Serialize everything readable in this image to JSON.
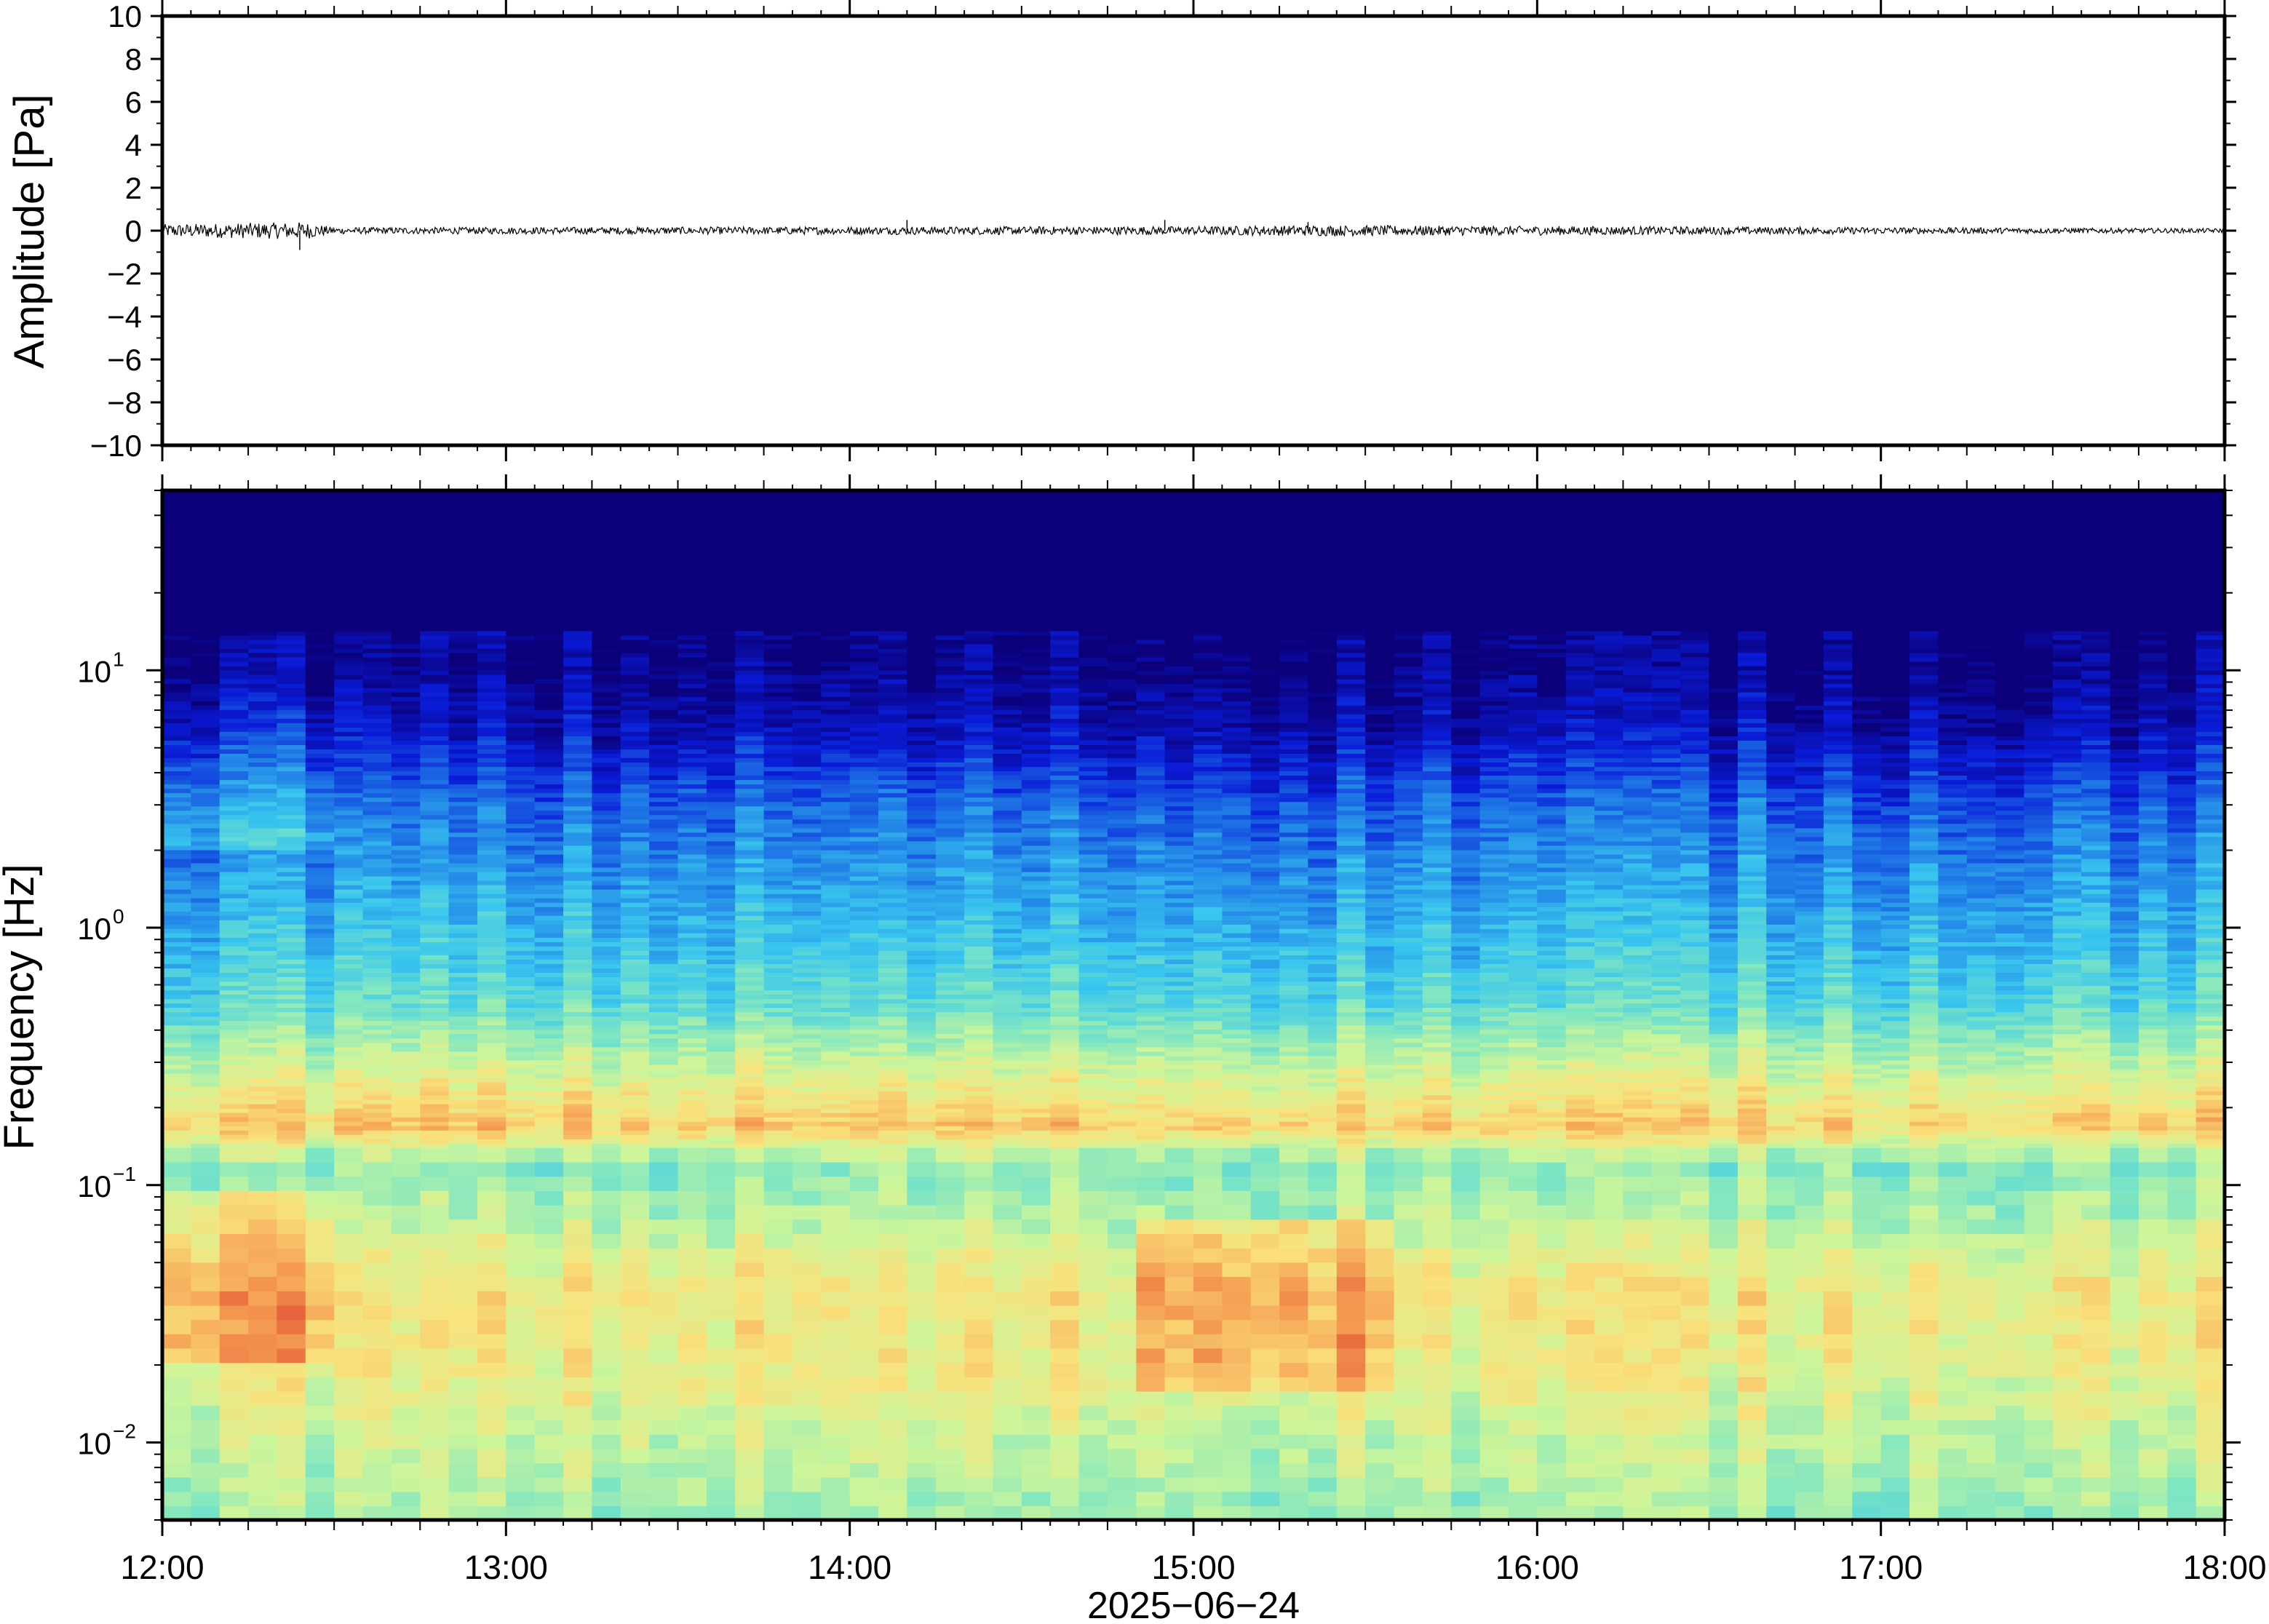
{
  "chart_data": [
    {
      "type": "line",
      "panel": "waveform",
      "ylabel": "Amplitude [Pa]",
      "ylim": [
        -10,
        10
      ],
      "y_ticks": [
        10,
        8,
        6,
        4,
        2,
        0,
        -2,
        -4,
        -6,
        -8,
        -10
      ],
      "y_tick_labels": [
        "10",
        "8",
        "6",
        "4",
        "2",
        "0",
        "−2",
        "−4",
        "−6",
        "−8",
        "−10"
      ],
      "x_range": [
        "12:00",
        "18:00"
      ],
      "line_color": "#000000",
      "baseline": 0,
      "noise_envelope_pa": [
        {
          "t": "12:00",
          "amp": 0.3
        },
        {
          "t": "12:25",
          "amp": 0.4
        },
        {
          "t": "12:30",
          "amp": 0.15
        },
        {
          "t": "15:00",
          "amp": 0.2
        },
        {
          "t": "15:20",
          "amp": 0.25
        },
        {
          "t": "18:00",
          "amp": 0.1
        }
      ],
      "spikes_pa": [
        {
          "t": "12:24",
          "amp": -0.9
        },
        {
          "t": "14:10",
          "amp": 0.5
        },
        {
          "t": "14:55",
          "amp": 0.5
        },
        {
          "t": "15:20",
          "amp": 0.4
        }
      ]
    },
    {
      "type": "heatmap",
      "panel": "spectrogram",
      "ylabel": "Frequency [Hz]",
      "yscale": "log",
      "ylim": [
        0.005,
        50
      ],
      "y_tick_labels": [
        {
          "base": "10",
          "exp": "1",
          "value": 10
        },
        {
          "base": "10",
          "exp": "0",
          "value": 1
        },
        {
          "base": "10",
          "exp": "−1",
          "value": 0.1
        },
        {
          "base": "10",
          "exp": "−2",
          "value": 0.01
        }
      ],
      "colormap": "jet",
      "colormap_stops": [
        "#0b007a",
        "#0a1bd8",
        "#1f7ae6",
        "#39c6ee",
        "#7fe6c2",
        "#cdf59a",
        "#f9e27c",
        "#f6a255",
        "#e0452f"
      ],
      "x_range": [
        "12:00",
        "18:00"
      ],
      "spectrum_profile_level": [
        {
          "f": 0.005,
          "level": 0.55
        },
        {
          "f": 0.01,
          "level": 0.62
        },
        {
          "f": 0.02,
          "level": 0.7
        },
        {
          "f": 0.04,
          "level": 0.72
        },
        {
          "f": 0.08,
          "level": 0.58
        },
        {
          "f": 0.12,
          "level": 0.52
        },
        {
          "f": 0.17,
          "level": 0.8
        },
        {
          "f": 0.25,
          "level": 0.68
        },
        {
          "f": 0.5,
          "level": 0.45
        },
        {
          "f": 1,
          "level": 0.36
        },
        {
          "f": 3,
          "level": 0.22
        },
        {
          "f": 6,
          "level": 0.08
        },
        {
          "f": 10,
          "level": 0.02
        },
        {
          "f": 50,
          "level": 0.0
        }
      ],
      "notable_features": [
        {
          "t_start": "12:00",
          "t_end": "12:30",
          "f_low": 0.02,
          "f_high": 0.1,
          "level": "high"
        },
        {
          "t_start": "12:00",
          "t_end": "12:30",
          "f_high_energy_up_to_hz": 15
        },
        {
          "t_start": "14:50",
          "t_end": "15:35",
          "f_low": 0.015,
          "f_high": 0.07,
          "level": "high"
        },
        {
          "t_start": "16:20",
          "t_end": "16:22",
          "f_high_energy_up_to_hz": 12
        }
      ]
    }
  ],
  "x_axis": {
    "ticks": [
      "12:00",
      "13:00",
      "14:00",
      "15:00",
      "16:00",
      "17:00",
      "18:00"
    ],
    "date_label": "2025−06−24"
  }
}
